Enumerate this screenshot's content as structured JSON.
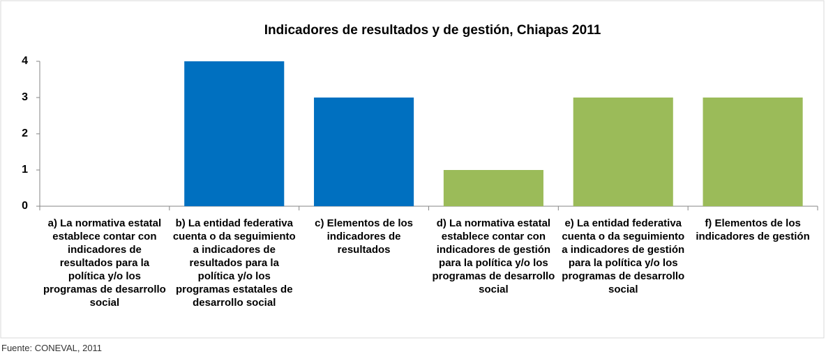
{
  "chart_data": {
    "type": "bar",
    "title": "Indicadores de resultados y de gestión, Chiapas 2011",
    "categories": [
      "a) La normativa estatal establece contar con indicadores de resultados para la política y/o los programas de desarrollo social",
      "b) La entidad federativa cuenta o da seguimiento a indicadores de resultados para la política y/o los programas estatales de desarrollo social",
      "c) Elementos de los indicadores de resultados",
      "d) La normativa estatal establece contar con indicadores de gestión para la política y/o los programas de desarrollo social",
      "e) La entidad federativa cuenta o da seguimiento a indicadores de gestión para la política y/o los programas de desarrollo social",
      "f) Elementos de los indicadores de gestión"
    ],
    "values": [
      0,
      4,
      3,
      1,
      3,
      3
    ],
    "colors": [
      "#0070c0",
      "#0070c0",
      "#0070c0",
      "#9bbb59",
      "#9bbb59",
      "#9bbb59"
    ],
    "ylim": [
      0,
      4
    ],
    "yticks": [
      0,
      1,
      2,
      3,
      4
    ],
    "grid": false,
    "source": "Fuente: CONEVAL, 2011"
  }
}
